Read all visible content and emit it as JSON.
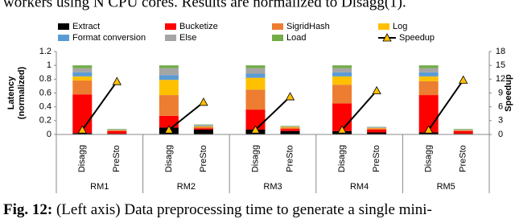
{
  "text_above": "workers using N CPU cores. Results are normalized to Disagg(1).",
  "chart_data": {
    "type": "stacked-bar-line",
    "groups": [
      "RM1",
      "RM2",
      "RM3",
      "RM4",
      "RM5"
    ],
    "categories": [
      "Disagg",
      "PreSto",
      "Disagg",
      "PreSto",
      "Disagg",
      "PreSto",
      "Disagg",
      "PreSto",
      "Disagg",
      "PreSto"
    ],
    "y_label": [
      "Latency",
      "(normalized)"
    ],
    "y2_label": "Speedup",
    "ylim": [
      0,
      1.2
    ],
    "yticks": [
      0,
      0.2,
      0.4,
      0.6,
      0.8,
      1,
      1.2
    ],
    "y2lim": [
      0,
      18
    ],
    "y2ticks": [
      0,
      3,
      6,
      9,
      12,
      15,
      18
    ],
    "series": [
      {
        "name": "Extract",
        "color": "#000000",
        "values": [
          0.02,
          0.01,
          0.1,
          0.07,
          0.07,
          0.05,
          0.05,
          0.03,
          0.03,
          0.01
        ]
      },
      {
        "name": "Bucketize",
        "color": "#ff0000",
        "values": [
          0.56,
          0.04,
          0.17,
          0.02,
          0.29,
          0.03,
          0.4,
          0.04,
          0.54,
          0.04
        ]
      },
      {
        "name": "SigridHash",
        "color": "#ed7d31",
        "values": [
          0.2,
          0.01,
          0.3,
          0.02,
          0.29,
          0.02,
          0.27,
          0.02,
          0.2,
          0.01
        ]
      },
      {
        "name": "Log",
        "color": "#ffc000",
        "values": [
          0.06,
          0.005,
          0.22,
          0.01,
          0.17,
          0.01,
          0.12,
          0.005,
          0.07,
          0.005
        ]
      },
      {
        "name": "Format conversion",
        "color": "#5b9bd5",
        "values": [
          0.06,
          0.005,
          0.07,
          0.01,
          0.06,
          0.005,
          0.06,
          0.005,
          0.06,
          0.005
        ]
      },
      {
        "name": "Else",
        "color": "#a5a5a5",
        "values": [
          0.06,
          0.005,
          0.1,
          0.01,
          0.08,
          0.005,
          0.06,
          0.005,
          0.06,
          0.005
        ]
      },
      {
        "name": "Load",
        "color": "#70ad47",
        "values": [
          0.04,
          0.005,
          0.04,
          0.005,
          0.04,
          0.005,
          0.04,
          0.005,
          0.04,
          0.005
        ]
      },
      {
        "name": "Speedup",
        "type": "line",
        "axis": "y2",
        "color": "#000000",
        "marker_color": "#ffc000",
        "values": [
          1,
          11.5,
          1,
          7,
          1,
          8.2,
          1,
          9.5,
          1,
          11.8
        ]
      }
    ]
  },
  "caption": {
    "label": "Fig. 12:",
    "text": "(Left axis) Data preprocessing time to generate a single mini-"
  }
}
